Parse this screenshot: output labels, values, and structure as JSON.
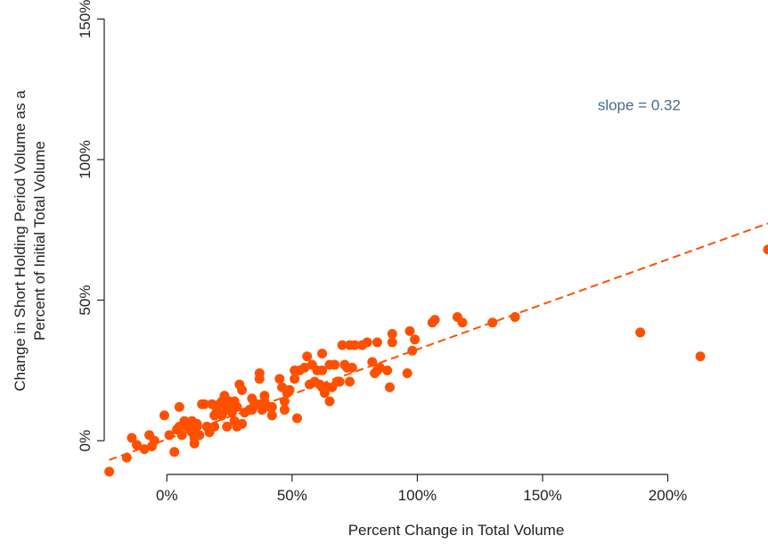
{
  "chart_data": {
    "type": "scatter",
    "title": "",
    "xlabel": "Percent Change in Total Volume",
    "ylabel": [
      "Change in Short Holding Period Volume as a",
      "Percent of Initial Total Volume"
    ],
    "xlim": [
      -25,
      240
    ],
    "ylim": [
      -12,
      152
    ],
    "xticks": [
      0,
      50,
      100,
      150,
      200
    ],
    "xtick_labels": [
      "0%",
      "50%",
      "100%",
      "150%",
      "200%"
    ],
    "yticks": [
      0,
      50,
      100,
      150
    ],
    "ytick_labels": [
      "0%",
      "50%",
      "100%",
      "150%"
    ],
    "grid": false,
    "annotation": {
      "text": "slope = 0.32",
      "x": 172,
      "y": 119.5,
      "color": "#4a6a84"
    },
    "colors": {
      "points": "#ff5000",
      "fit_line": "#ff5000"
    },
    "fit_line": {
      "slope": 0.32,
      "intercept": 0.5,
      "style": "dashed",
      "x_range": [
        -23,
        240
      ]
    },
    "series": [
      {
        "points": [
          [
            -23,
            -11
          ],
          [
            -16,
            -6
          ],
          [
            -14,
            1
          ],
          [
            -12,
            -1.5
          ],
          [
            -9,
            -3
          ],
          [
            -7,
            2
          ],
          [
            -6,
            -2
          ],
          [
            -5,
            0
          ],
          [
            -1,
            9
          ],
          [
            1,
            2
          ],
          [
            3,
            -4
          ],
          [
            4,
            4
          ],
          [
            5,
            5
          ],
          [
            5,
            12
          ],
          [
            6,
            2
          ],
          [
            7,
            7
          ],
          [
            8,
            5
          ],
          [
            9,
            6
          ],
          [
            10,
            3
          ],
          [
            10,
            7
          ],
          [
            11,
            1
          ],
          [
            11,
            -1
          ],
          [
            12,
            5
          ],
          [
            12,
            6
          ],
          [
            13,
            2
          ],
          [
            14,
            13
          ],
          [
            15,
            13
          ],
          [
            16,
            5
          ],
          [
            17,
            3
          ],
          [
            18,
            13
          ],
          [
            19,
            9
          ],
          [
            19,
            5
          ],
          [
            20,
            11
          ],
          [
            20,
            10
          ],
          [
            21,
            13
          ],
          [
            22,
            14
          ],
          [
            22,
            9
          ],
          [
            23,
            16
          ],
          [
            24,
            11
          ],
          [
            24,
            13
          ],
          [
            24,
            5
          ],
          [
            25,
            12
          ],
          [
            25,
            14
          ],
          [
            26,
            10
          ],
          [
            27,
            14
          ],
          [
            27,
            7
          ],
          [
            28,
            12
          ],
          [
            28,
            5
          ],
          [
            29,
            20
          ],
          [
            30,
            18
          ],
          [
            30,
            6
          ],
          [
            31,
            10
          ],
          [
            33,
            11
          ],
          [
            34,
            15
          ],
          [
            34,
            11
          ],
          [
            35,
            13
          ],
          [
            36,
            13
          ],
          [
            37,
            22
          ],
          [
            37,
            24
          ],
          [
            38,
            11
          ],
          [
            39,
            14
          ],
          [
            39,
            16
          ],
          [
            41,
            12
          ],
          [
            42,
            12
          ],
          [
            42,
            9
          ],
          [
            45,
            22
          ],
          [
            46,
            19
          ],
          [
            47,
            14
          ],
          [
            47,
            11
          ],
          [
            48,
            17
          ],
          [
            49,
            18
          ],
          [
            51,
            25
          ],
          [
            51,
            22
          ],
          [
            52,
            8
          ],
          [
            53,
            25
          ],
          [
            55,
            26
          ],
          [
            56,
            30
          ],
          [
            57,
            20
          ],
          [
            58,
            27
          ],
          [
            59,
            21
          ],
          [
            60,
            25
          ],
          [
            61,
            20
          ],
          [
            62,
            25
          ],
          [
            62,
            19
          ],
          [
            62,
            31
          ],
          [
            63,
            17
          ],
          [
            64,
            19
          ],
          [
            65,
            27
          ],
          [
            65,
            14
          ],
          [
            66,
            19
          ],
          [
            67,
            27
          ],
          [
            68,
            21
          ],
          [
            69,
            21
          ],
          [
            70,
            34
          ],
          [
            71,
            27
          ],
          [
            72,
            26
          ],
          [
            73,
            34
          ],
          [
            73,
            21
          ],
          [
            74,
            26
          ],
          [
            75,
            34
          ],
          [
            78,
            34
          ],
          [
            80,
            35
          ],
          [
            82,
            28
          ],
          [
            83,
            24
          ],
          [
            84,
            25
          ],
          [
            84,
            35
          ],
          [
            85,
            26
          ],
          [
            88,
            25
          ],
          [
            89,
            19
          ],
          [
            90,
            38
          ],
          [
            90,
            35
          ],
          [
            96,
            24
          ],
          [
            97,
            39
          ],
          [
            98,
            32
          ],
          [
            99,
            36
          ],
          [
            106,
            42
          ],
          [
            107,
            43
          ],
          [
            116,
            44
          ],
          [
            118,
            42
          ],
          [
            130,
            42
          ],
          [
            139,
            44
          ],
          [
            189,
            38.5
          ],
          [
            213,
            30
          ],
          [
            240,
            68
          ]
        ]
      }
    ]
  }
}
